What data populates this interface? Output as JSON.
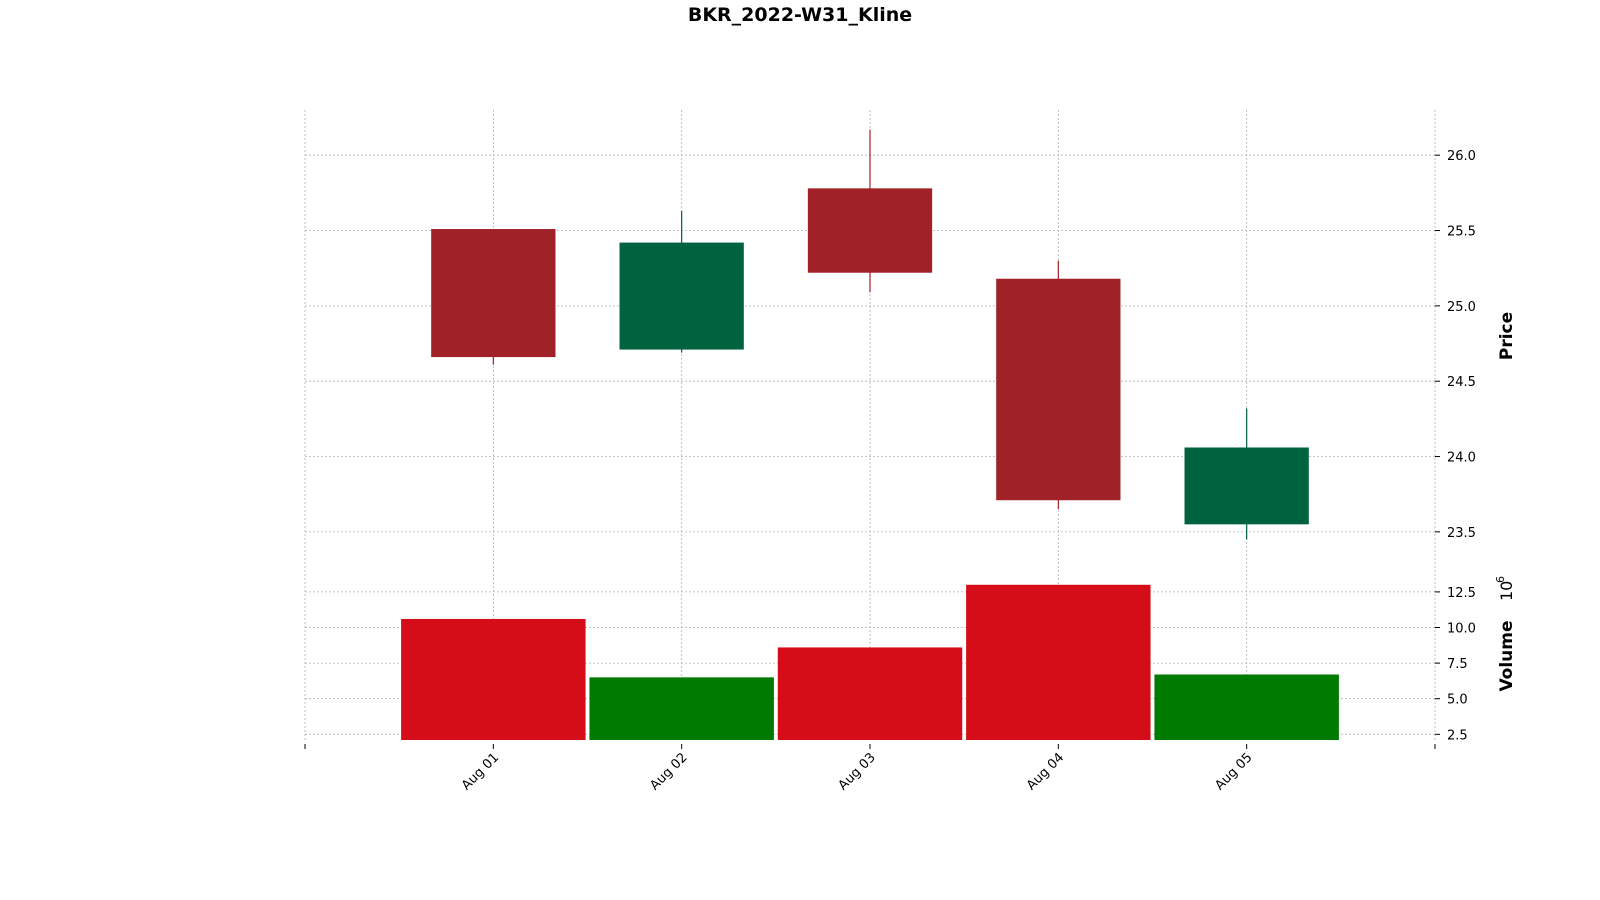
{
  "chart_data": {
    "type": "candlestick",
    "title": "BKR_2022-W31_Kline",
    "dates": [
      "Aug 01",
      "Aug 02",
      "Aug 03",
      "Aug 04",
      "Aug 05"
    ],
    "open": [
      25.51,
      24.71,
      25.78,
      25.18,
      23.55
    ],
    "high": [
      25.51,
      25.63,
      26.17,
      25.3,
      24.32
    ],
    "low": [
      24.61,
      24.69,
      25.09,
      23.65,
      23.45
    ],
    "close": [
      24.66,
      25.42,
      25.22,
      23.71,
      24.06
    ],
    "volume": [
      10.6,
      6.5,
      8.6,
      13.0,
      6.7
    ],
    "price_axis": {
      "label": "Price",
      "ticks": [
        23.5,
        24.0,
        24.5,
        25.0,
        25.5,
        26.0
      ],
      "tick_labels": [
        "23.5",
        "24.0",
        "24.5",
        "25.0",
        "25.5",
        "26.0"
      ],
      "range": [
        23.3,
        26.3
      ]
    },
    "volume_axis": {
      "label": "Volume",
      "scale_label": "10",
      "scale_exponent": "6",
      "ticks": [
        2.5,
        5.0,
        7.5,
        10.0,
        12.5
      ],
      "tick_labels": [
        "2.5",
        "5.0",
        "7.5",
        "10.0",
        "12.5"
      ],
      "range": [
        2.1,
        14.6
      ]
    },
    "colors": {
      "up_candle": "#006340",
      "down_candle": "#a02128",
      "up_volume": "#007a00",
      "down_volume": "#d50d18",
      "grid": "#b0b0b0"
    },
    "grid": true,
    "y_axis_position": "right"
  }
}
